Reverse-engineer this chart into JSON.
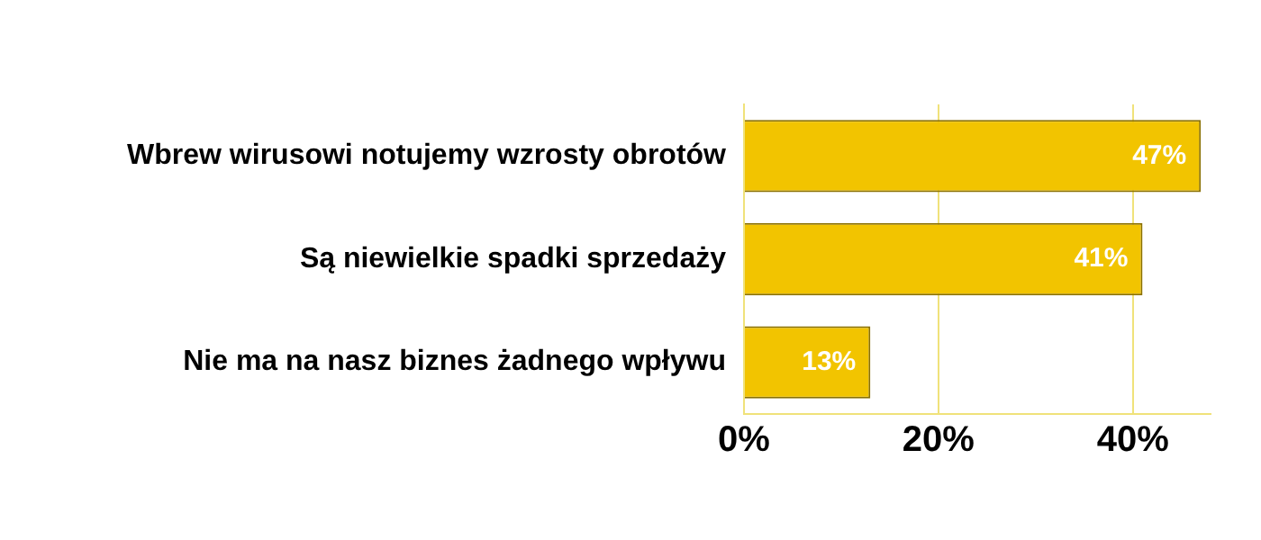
{
  "chart_data": {
    "type": "bar",
    "orientation": "horizontal",
    "categories": [
      "Wbrew wirusowi notujemy wzrosty obrotów",
      "Są niewielkie spadki sprzedaży",
      "Nie ma na nasz biznes żadnego wpływu"
    ],
    "values": [
      47,
      41,
      13
    ],
    "color": "#f2c400",
    "data_labels": true,
    "value_labels": [
      "47%",
      "41%",
      "13%"
    ],
    "xlim": [
      0,
      48
    ],
    "xticks": [
      {
        "value": 0,
        "label": "0%"
      },
      {
        "value": 20,
        "label": "20%"
      },
      {
        "value": 40,
        "label": "40%"
      }
    ],
    "grid": "x",
    "legend": false
  }
}
